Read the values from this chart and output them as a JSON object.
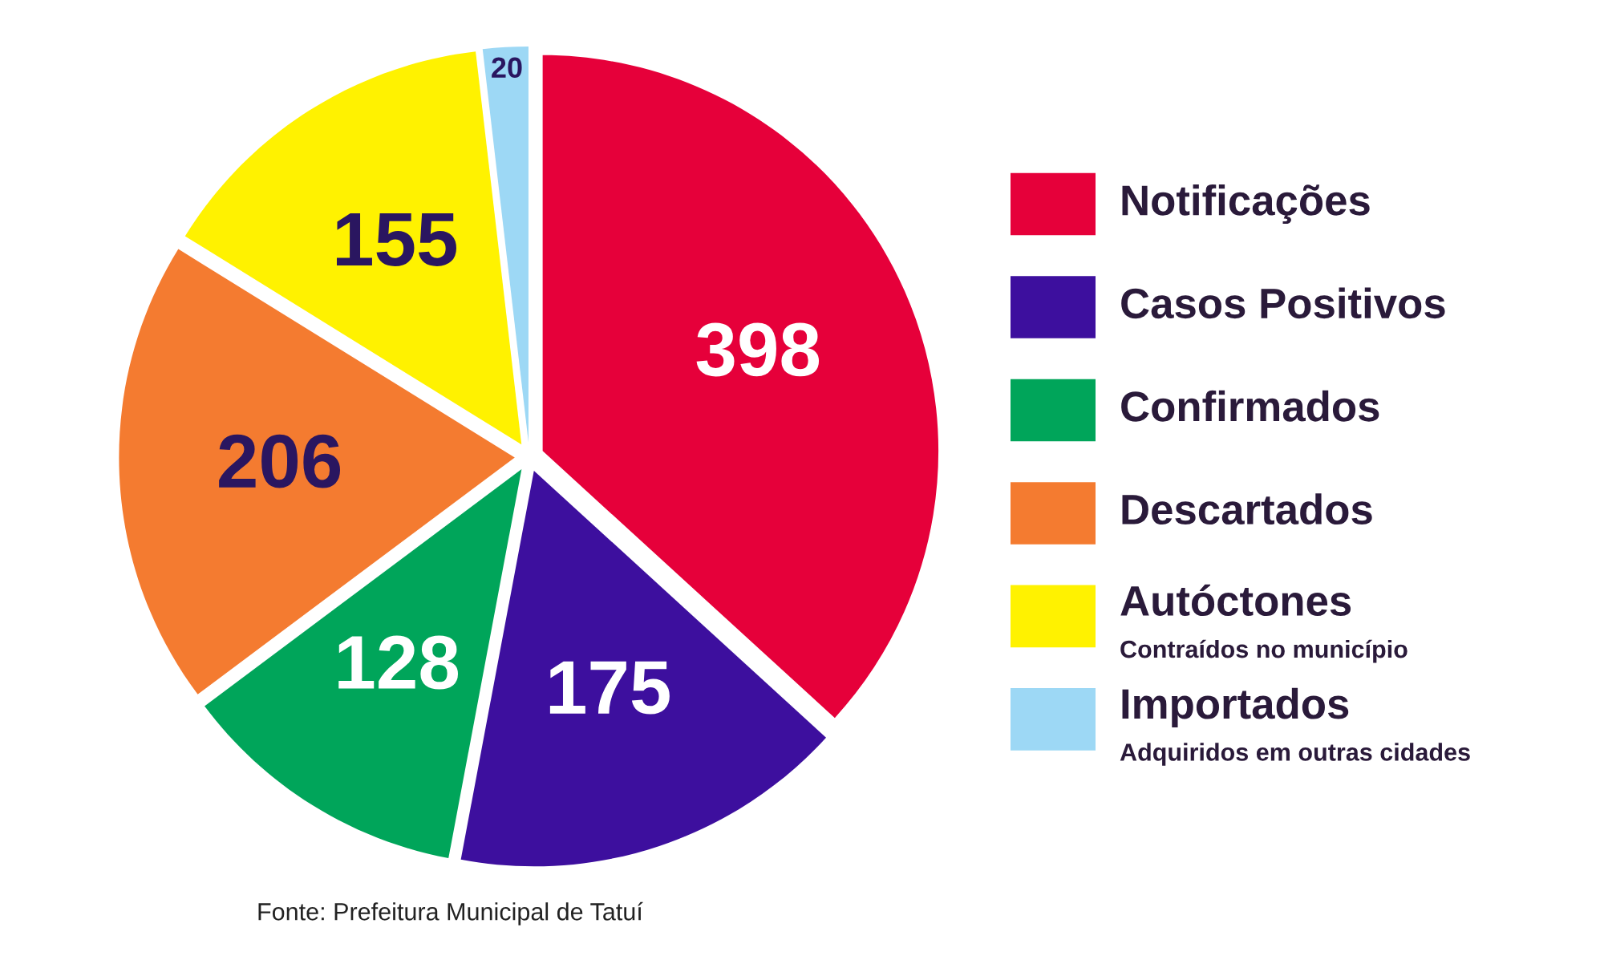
{
  "chart_data": {
    "type": "pie",
    "categories": [
      "Notificações",
      "Casos Positivos",
      "Confirmados",
      "Descartados",
      "Autóctones\nContraídos no município",
      "Importados\nAdquiridos em outras cidades"
    ],
    "values": [
      398,
      175,
      128,
      206,
      155,
      20
    ],
    "colors": [
      "#e6003a",
      "#3d0f9e",
      "#00a55a",
      "#f47b30",
      "#fff200",
      "#9dd8f5"
    ],
    "data_labels": true,
    "legend": "right",
    "annotations": [
      "Fonte: Prefeitura Municipal de Tatuí"
    ]
  }
}
